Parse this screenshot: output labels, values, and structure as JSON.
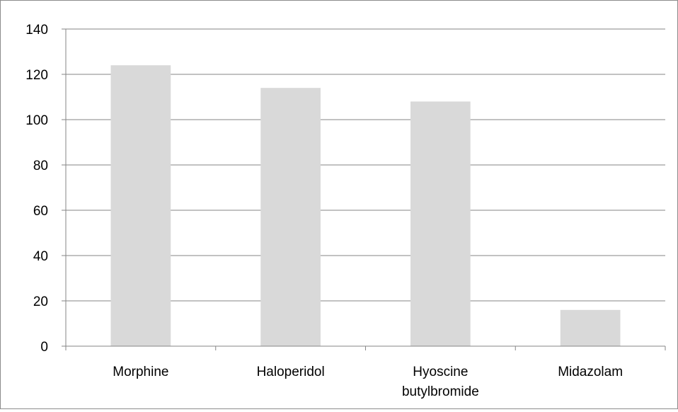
{
  "chart_data": {
    "type": "bar",
    "categories": [
      [
        "Morphine"
      ],
      [
        "Haloperidol"
      ],
      [
        "Hyoscine",
        "butylbromide"
      ],
      [
        "Midazolam"
      ]
    ],
    "values": [
      124,
      114,
      108,
      16
    ],
    "ylim": [
      0,
      140
    ],
    "yticks": [
      "0",
      "20",
      "40",
      "60",
      "80",
      "100",
      "120",
      "140"
    ],
    "title": "",
    "xlabel": "",
    "ylabel": "",
    "grid": true,
    "legend": "none",
    "colors": {
      "bar": "#d9d9d9",
      "grid": "#868686",
      "axis": "#868686",
      "text": "#000000"
    }
  }
}
